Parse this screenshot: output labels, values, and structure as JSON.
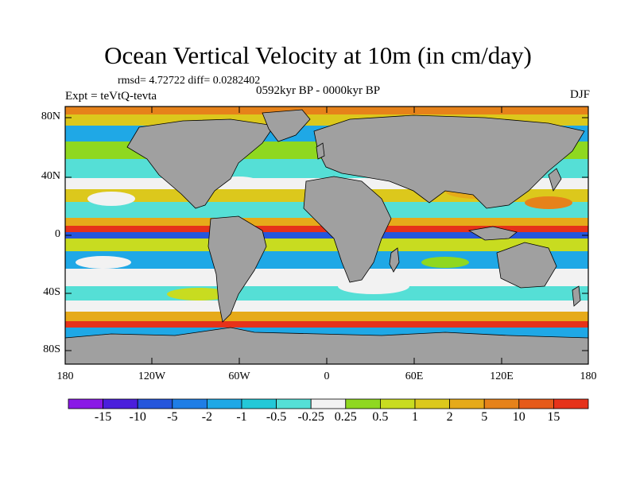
{
  "title": "Ocean Vertical Velocity at 10m (in cm/day)",
  "stats": "rmsd= 4.72722 diff= 0.0282402",
  "experiment": "Expt = teVtQ-tevta",
  "period": "0592kyr BP - 0000kyr BP",
  "season": "DJF",
  "lat_labels": [
    "80N",
    "40N",
    "0",
    "40S",
    "80S"
  ],
  "lon_labels": [
    "180",
    "120W",
    "60W",
    "0",
    "60E",
    "120E",
    "180"
  ],
  "colorbar": {
    "labels": [
      "-15",
      "-10",
      "-5",
      "-2",
      "-1",
      "-0.5",
      "-0.25",
      "0.25",
      "0.5",
      "1",
      "2",
      "5",
      "10",
      "15"
    ],
    "colors": [
      "#8a19e6",
      "#4b1fdc",
      "#2656dc",
      "#1f7ee6",
      "#1fa8e6",
      "#23c8d8",
      "#55dfd6",
      "#f2f2f2",
      "#8fd820",
      "#c8dc20",
      "#dcc81c",
      "#e6aa1a",
      "#e6821a",
      "#e65a1a",
      "#e6321a"
    ]
  },
  "colors": {
    "land": "#a0a0a0",
    "coast": "#000000"
  }
}
